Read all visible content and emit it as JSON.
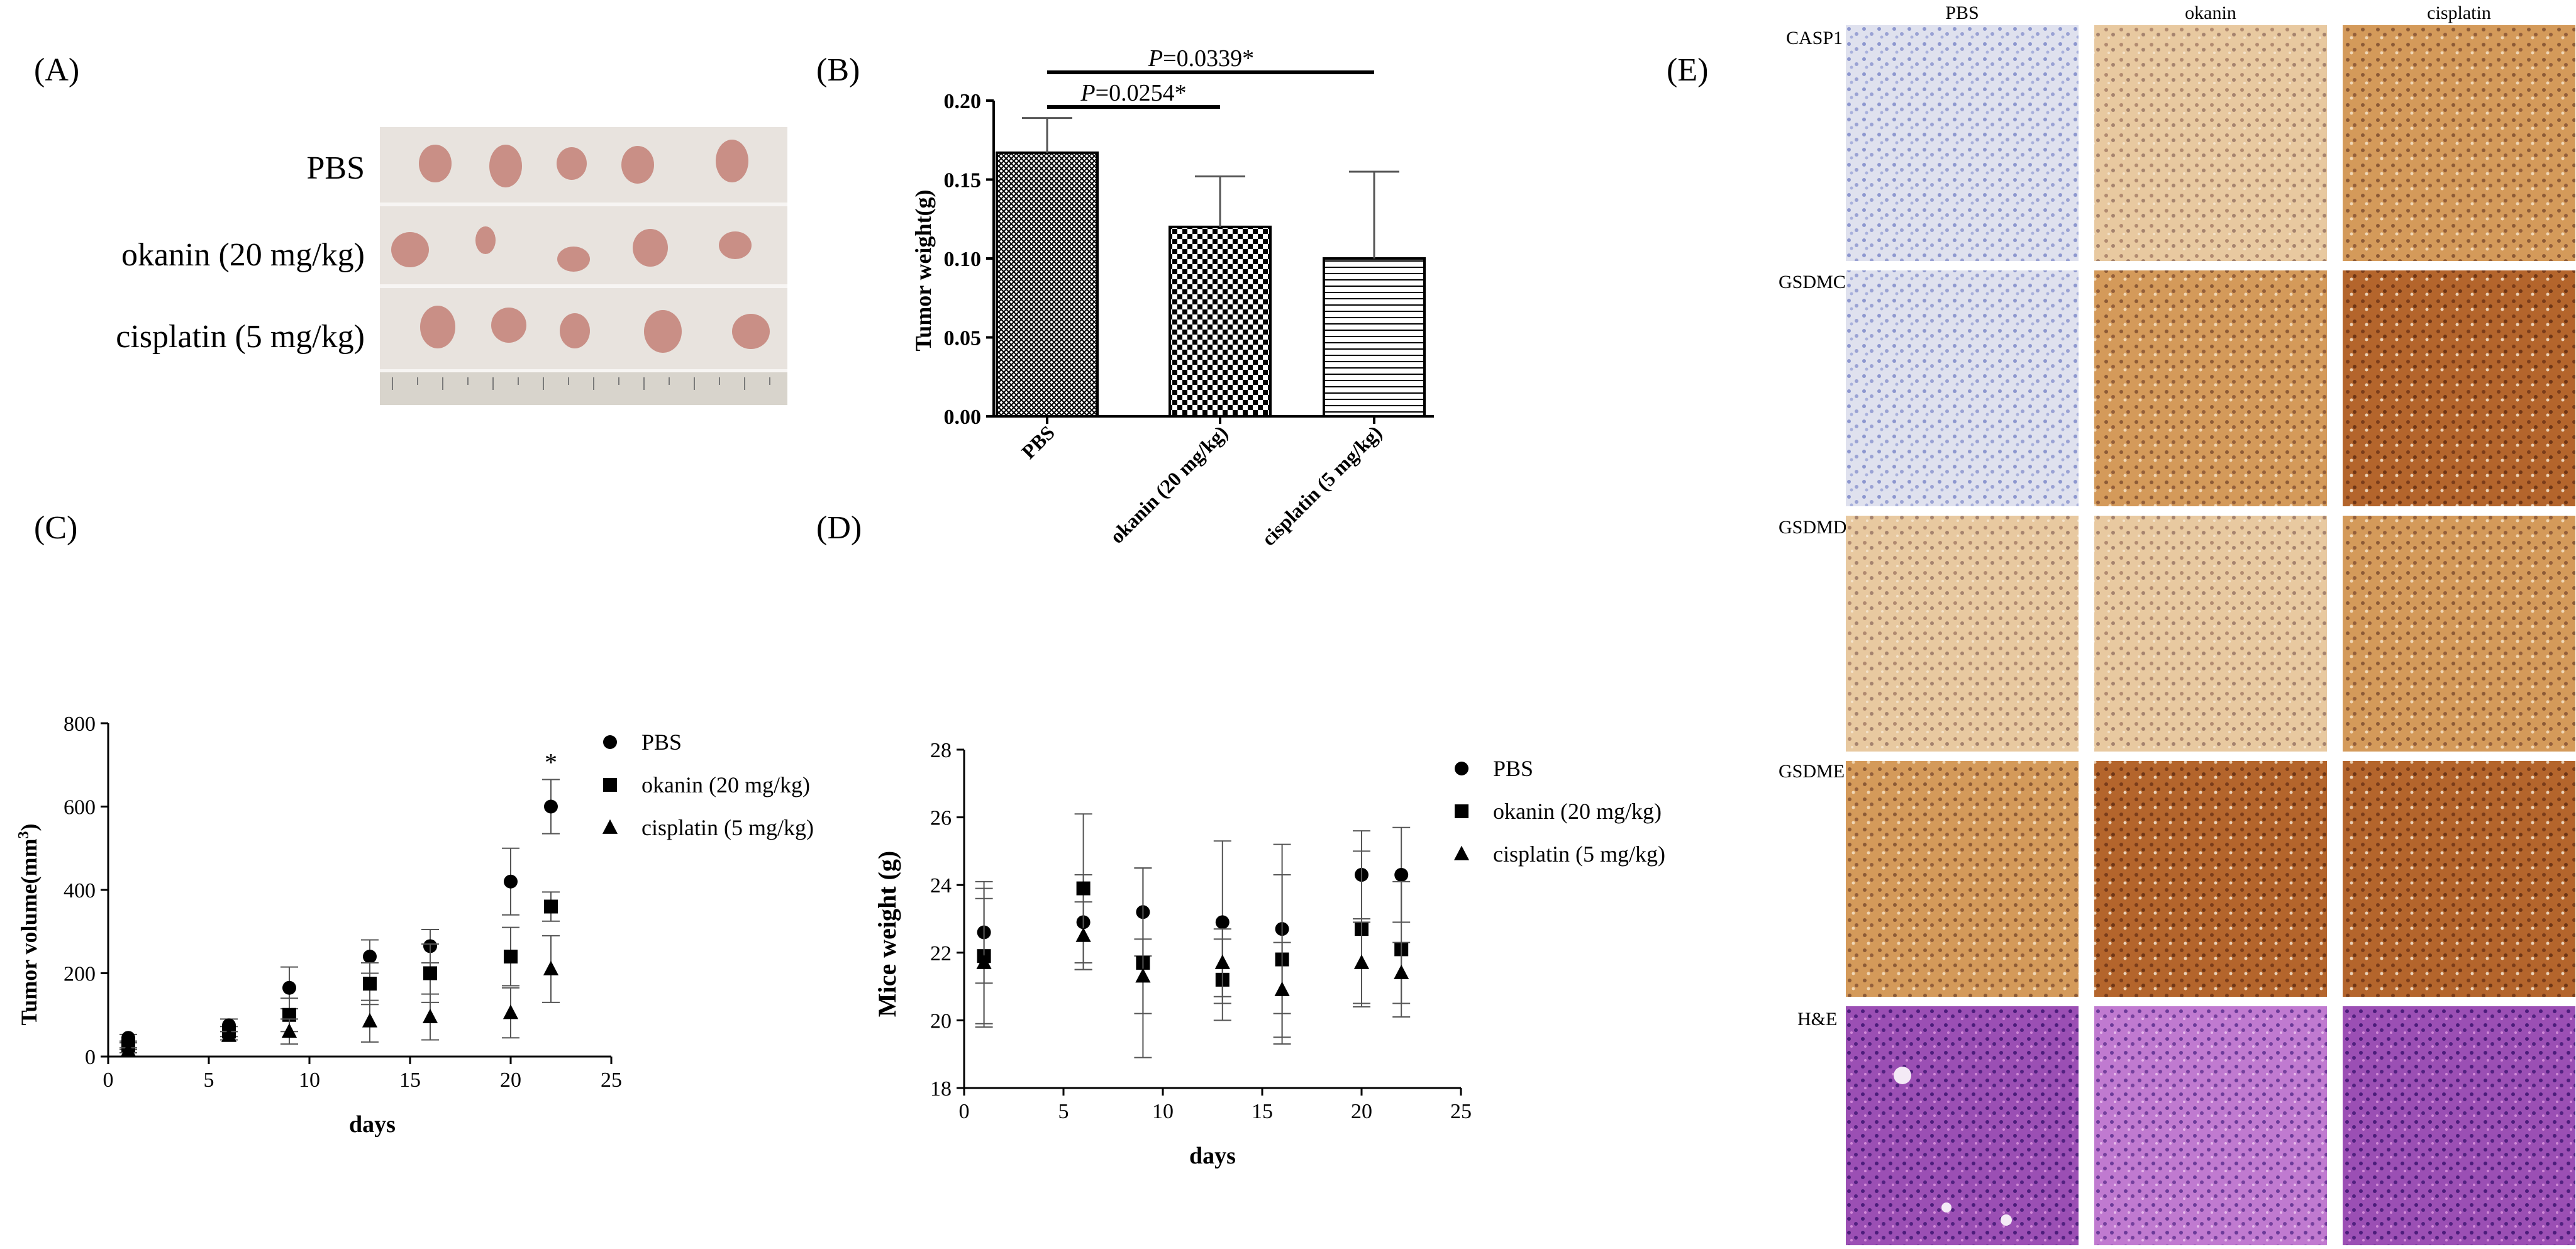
{
  "panel_labels": [
    "(A)",
    "(B)",
    "(C)",
    "(D)",
    "(E)"
  ],
  "panelA": {
    "rows": [
      "PBS",
      "okanin (20 mg/kg)",
      "cisplatin (5 mg/kg)"
    ]
  },
  "colors": {
    "tumor": "#c98f86",
    "photo_bg": "#e6e1db",
    "ihc_brown": "#c98a4a",
    "ihc_blue": "#b9bfe0",
    "he_purple": "#8a3fa8"
  },
  "chart_data": [
    {
      "id": "B",
      "type": "bar",
      "ylabel": "Tumor weight(g)",
      "categories": [
        "PBS",
        "okanin (20 mg/kg)",
        "cisplatin (5 mg/kg)"
      ],
      "values": [
        0.167,
        0.12,
        0.1
      ],
      "errors": [
        0.022,
        0.032,
        0.055
      ],
      "patterns": [
        "crosshatch",
        "checker",
        "hlines"
      ],
      "ylim": [
        0,
        0.2
      ],
      "yticks": [
        "0.00",
        "0.05",
        "0.10",
        "0.15",
        "0.20"
      ],
      "ytick_values": [
        0,
        0.05,
        0.1,
        0.15,
        0.2
      ],
      "annotations": [
        {
          "italic": "P",
          "text": "=0.0254*",
          "from": 0,
          "to": 1
        },
        {
          "italic": "P",
          "text": "=0.0339*",
          "from": 0,
          "to": 2
        }
      ]
    },
    {
      "id": "C",
      "type": "scatter",
      "xlabel": "days",
      "ylabel_main": "Tumor volume(mm",
      "ylabel_sup": "3",
      "ylabel_end": ")",
      "xlim": [
        0,
        25
      ],
      "ylim": [
        0,
        800
      ],
      "xticks": [
        0,
        5,
        10,
        15,
        20,
        25
      ],
      "yticks": [
        0,
        200,
        400,
        600,
        800
      ],
      "days": [
        1,
        6,
        9,
        13,
        16,
        20,
        22
      ],
      "series": [
        {
          "name": "PBS",
          "marker": "circle",
          "values": [
            45,
            75,
            165,
            240,
            265,
            420,
            600
          ],
          "err": [
            8,
            15,
            50,
            40,
            40,
            80,
            65
          ]
        },
        {
          "name": "okanin (20 mg/kg)",
          "marker": "square",
          "values": [
            25,
            60,
            100,
            175,
            200,
            240,
            360
          ],
          "err": [
            8,
            12,
            40,
            50,
            70,
            70,
            35
          ]
        },
        {
          "name": "cisplatin (5 mg/kg)",
          "marker": "triangle",
          "values": [
            15,
            50,
            60,
            85,
            95,
            105,
            210
          ],
          "err": [
            6,
            10,
            30,
            50,
            55,
            60,
            80
          ]
        }
      ],
      "star": "*",
      "star_day": 22
    },
    {
      "id": "D",
      "type": "scatter",
      "xlabel": "days",
      "ylabel": "Mice weight (g)",
      "xlim": [
        0,
        25
      ],
      "ylim": [
        18,
        28
      ],
      "xticks": [
        0,
        5,
        10,
        15,
        20,
        25
      ],
      "yticks": [
        18,
        20,
        22,
        24,
        26,
        28
      ],
      "days": [
        1,
        6,
        9,
        13,
        16,
        20,
        22
      ],
      "series": [
        {
          "name": "PBS",
          "marker": "circle",
          "values": [
            22.6,
            22.9,
            23.2,
            22.9,
            22.7,
            24.3,
            24.3
          ],
          "err": [
            1.5,
            1.4,
            1.3,
            2.4,
            2.5,
            1.3,
            1.4
          ]
        },
        {
          "name": "okanin (20 mg/kg)",
          "marker": "square",
          "values": [
            21.9,
            23.9,
            21.7,
            21.2,
            21.8,
            22.7,
            22.1
          ],
          "err": [
            2.0,
            2.2,
            2.8,
            1.2,
            2.5,
            2.3,
            2.0
          ]
        },
        {
          "name": "cisplatin (5 mg/kg)",
          "marker": "triangle",
          "values": [
            21.7,
            22.5,
            21.3,
            21.7,
            20.9,
            21.7,
            21.4
          ],
          "err": [
            1.9,
            1.0,
            1.1,
            1.0,
            1.4,
            1.2,
            0.9
          ]
        }
      ]
    }
  ],
  "panelE": {
    "columns": [
      "PBS",
      "okanin",
      "cisplatin"
    ],
    "rows": [
      "CASP1",
      "GSDMC",
      "GSDMD",
      "GSDME",
      "H&E"
    ]
  }
}
